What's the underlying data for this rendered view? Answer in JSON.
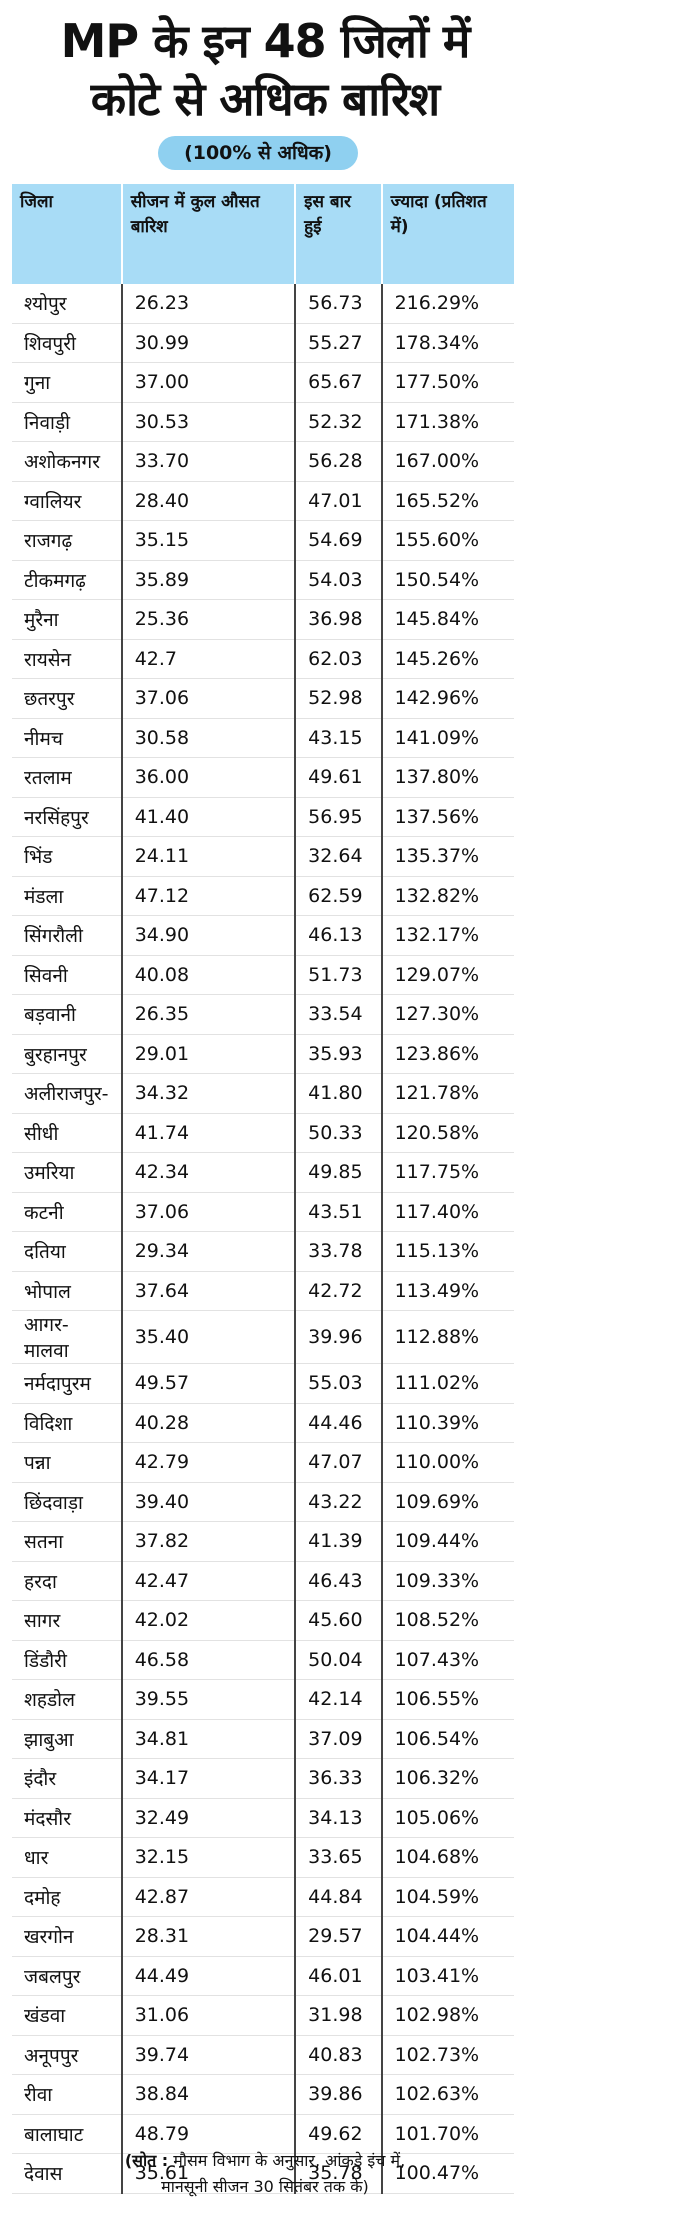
{
  "header": {
    "title_lines": [
      "MP के इन 48 जिलों में",
      "कोटे से अधिक बारिश"
    ],
    "subtitle": "(100% से अधिक)"
  },
  "table": {
    "columns": [
      "जिला",
      "सीजन में कुल औसत बारिश",
      "इस बार हुई",
      "ज्यादा (प्रतिशत में)"
    ],
    "rows": [
      [
        "श्योपुर",
        "26.23",
        "56.73",
        "216.29%"
      ],
      [
        "शिवपुरी",
        "30.99",
        "55.27",
        "178.34%"
      ],
      [
        "गुना",
        "37.00",
        "65.67",
        "177.50%"
      ],
      [
        "निवाड़ी",
        "30.53",
        "52.32",
        "171.38%"
      ],
      [
        "अशोकनगर",
        "33.70",
        "56.28",
        "167.00%"
      ],
      [
        "ग्वालियर",
        "28.40",
        "47.01",
        "165.52%"
      ],
      [
        "राजगढ़",
        "35.15",
        "54.69",
        "155.60%"
      ],
      [
        "टीकमगढ़",
        "35.89",
        "54.03",
        "150.54%"
      ],
      [
        "मुरैना",
        "25.36",
        "36.98",
        "145.84%"
      ],
      [
        "रायसेन",
        "42.7",
        "62.03",
        "145.26%"
      ],
      [
        "छतरपुर",
        "37.06",
        "52.98",
        "142.96%"
      ],
      [
        "नीमच",
        "30.58",
        "43.15",
        "141.09%"
      ],
      [
        "रतलाम",
        "36.00",
        "49.61",
        "137.80%"
      ],
      [
        "नरसिंहपुर",
        "41.40",
        "56.95",
        "137.56%"
      ],
      [
        "भिंड",
        "24.11",
        "32.64",
        "135.37%"
      ],
      [
        "मंडला",
        "47.12",
        "62.59",
        "132.82%"
      ],
      [
        "सिंगरौली",
        "34.90",
        "46.13",
        "132.17%"
      ],
      [
        "सिवनी",
        "40.08",
        "51.73",
        "129.07%"
      ],
      [
        "बड़वानी",
        "26.35",
        "33.54",
        "127.30%"
      ],
      [
        "बुरहानपुर",
        "29.01",
        "35.93",
        "123.86%"
      ],
      [
        "अलीराजपुर-",
        "34.32",
        "41.80",
        "121.78%"
      ],
      [
        "सीधी",
        "41.74",
        "50.33",
        "120.58%"
      ],
      [
        "उमरिया",
        "42.34",
        "49.85",
        "117.75%"
      ],
      [
        "कटनी",
        "37.06",
        "43.51",
        "117.40%"
      ],
      [
        "दतिया",
        "29.34",
        "33.78",
        "115.13%"
      ],
      [
        "भोपाल",
        "37.64",
        "42.72",
        "113.49%"
      ],
      [
        "आगर-मालवा",
        "35.40",
        "39.96",
        "112.88%"
      ],
      [
        "नर्मदापुरम",
        "49.57",
        "55.03",
        "111.02%"
      ],
      [
        "विदिशा",
        "40.28",
        "44.46",
        "110.39%"
      ],
      [
        "पन्ना",
        "42.79",
        "47.07",
        "110.00%"
      ],
      [
        "छिंदवाड़ा",
        "39.40",
        "43.22",
        "109.69%"
      ],
      [
        "सतना",
        "37.82",
        "41.39",
        "109.44%"
      ],
      [
        "हरदा",
        "42.47",
        "46.43",
        "109.33%"
      ],
      [
        "सागर",
        "42.02",
        "45.60",
        "108.52%"
      ],
      [
        "डिंडौरी",
        "46.58",
        "50.04",
        "107.43%"
      ],
      [
        "शहडोल",
        "39.55",
        "42.14",
        "106.55%"
      ],
      [
        "झाबुआ",
        "34.81",
        "37.09",
        "106.54%"
      ],
      [
        "इंदौर",
        "34.17",
        "36.33",
        "106.32%"
      ],
      [
        "मंदसौर",
        "32.49",
        "34.13",
        "105.06%"
      ],
      [
        "धार",
        "32.15",
        "33.65",
        "104.68%"
      ],
      [
        "दमोह",
        "42.87",
        "44.84",
        "104.59%"
      ],
      [
        "खरगोन",
        "28.31",
        "29.57",
        "104.44%"
      ],
      [
        "जबलपुर",
        "44.49",
        "46.01",
        "103.41%"
      ],
      [
        "खंडवा",
        "31.06",
        "31.98",
        "102.98%"
      ],
      [
        "अनूपपुर",
        "39.74",
        "40.83",
        "102.73%"
      ],
      [
        "रीवा",
        "38.84",
        "39.86",
        "102.63%"
      ],
      [
        "बालाघाट",
        "48.79",
        "49.62",
        "101.70%"
      ],
      [
        "देवास",
        "35.61",
        "35.78",
        "100.47%"
      ]
    ]
  },
  "source": {
    "label": "(सोत :",
    "lines": [
      "मौसम विभाग के अनुसार, आंकड़े इंच में,",
      "मानसूनी सीजन 30 सितंबर तक के)"
    ]
  }
}
